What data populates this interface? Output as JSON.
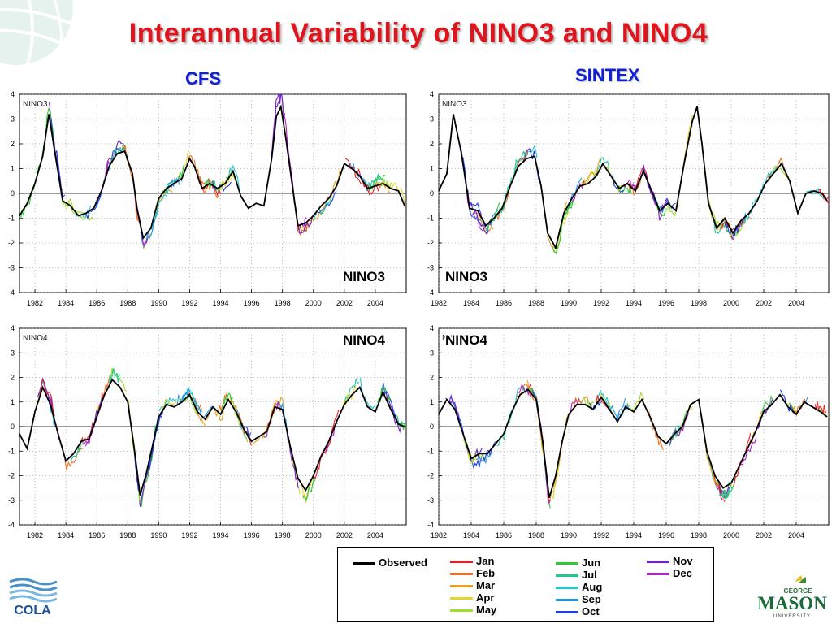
{
  "title": "Interannual Variability of NINO3 and NINO4",
  "columns": {
    "left": "CFS",
    "right": "SINTEX"
  },
  "logos": {
    "left": "COLA",
    "right_top": "GEORGE",
    "right_main": "MASON",
    "right_bottom": "UNIVERSITY"
  },
  "legend": [
    {
      "label": "Observed",
      "color": "#000000"
    },
    {
      "label": "Jan",
      "color": "#e8202a"
    },
    {
      "label": "Feb",
      "color": "#f07020"
    },
    {
      "label": "Mar",
      "color": "#e8a020"
    },
    {
      "label": "Apr",
      "color": "#e0d830"
    },
    {
      "label": "May",
      "color": "#a0dc30"
    },
    {
      "label": "Jun",
      "color": "#30c830"
    },
    {
      "label": "Jul",
      "color": "#20c890"
    },
    {
      "label": "Aug",
      "color": "#20c8d0"
    },
    {
      "label": "Sep",
      "color": "#2098e8"
    },
    {
      "label": "Oct",
      "color": "#2040e0"
    },
    {
      "label": "Nov",
      "color": "#7020c8"
    },
    {
      "label": "Dec",
      "color": "#b020c8"
    }
  ],
  "chart_data": [
    {
      "type": "line",
      "id": "cfs-nino3",
      "panel_label": "NINO3",
      "overlay_label": "NINO3",
      "ylim": [
        -4,
        4
      ],
      "yticks": [
        -4,
        -3,
        -2,
        -1,
        0,
        1,
        2,
        3,
        4
      ],
      "xlim": [
        1981,
        2006
      ],
      "xticks": [
        1982,
        1984,
        1986,
        1988,
        1990,
        1992,
        1994,
        1996,
        1998,
        2000,
        2002,
        2004
      ],
      "grid": true,
      "observed": {
        "x": [
          1981.0,
          1981.5,
          1982.0,
          1982.5,
          1982.9,
          1983.3,
          1983.8,
          1984.3,
          1984.8,
          1985.3,
          1985.8,
          1986.3,
          1986.8,
          1987.3,
          1987.8,
          1988.3,
          1988.6,
          1989.0,
          1989.5,
          1990.0,
          1990.5,
          1991.0,
          1991.5,
          1992.0,
          1992.3,
          1992.8,
          1993.3,
          1993.8,
          1994.3,
          1994.8,
          1995.3,
          1995.8,
          1996.3,
          1996.8,
          1997.3,
          1997.6,
          1997.9,
          1998.2,
          1998.6,
          1999.0,
          1999.5,
          2000.0,
          2000.5,
          2001.0,
          2001.5,
          2002.0,
          2002.5,
          2003.0,
          2003.5,
          2004.0,
          2004.5,
          2005.0,
          2005.5,
          2005.9
        ],
        "y": [
          -0.9,
          -0.4,
          0.4,
          1.5,
          3.2,
          1.6,
          -0.3,
          -0.5,
          -0.9,
          -0.8,
          -0.6,
          0.1,
          1.1,
          1.6,
          1.7,
          0.8,
          -0.6,
          -1.8,
          -1.4,
          -0.2,
          0.2,
          0.4,
          0.6,
          1.4,
          1.1,
          0.2,
          0.4,
          0.2,
          0.4,
          0.9,
          -0.1,
          -0.6,
          -0.4,
          -0.5,
          1.4,
          3.1,
          3.5,
          2.3,
          0.5,
          -1.3,
          -1.2,
          -0.9,
          -0.5,
          -0.2,
          0.3,
          1.2,
          1.0,
          0.7,
          0.2,
          0.3,
          0.4,
          0.2,
          0.1,
          -0.5
        ]
      }
    },
    {
      "type": "line",
      "id": "sintex-nino3",
      "panel_label": "NINO3",
      "overlay_label": "NINO3",
      "ylim": [
        -4,
        4
      ],
      "yticks": [
        -4,
        -3,
        -2,
        -1,
        0,
        1,
        2,
        3,
        4
      ],
      "xlim": [
        1982,
        2006
      ],
      "xticks": [
        1982,
        1984,
        1986,
        1988,
        1990,
        1992,
        1994,
        1996,
        1998,
        2000,
        2002,
        2004
      ],
      "grid": true,
      "observed": {
        "x": [
          1982.0,
          1982.5,
          1982.9,
          1983.4,
          1983.9,
          1984.4,
          1984.9,
          1985.4,
          1985.9,
          1986.4,
          1986.9,
          1987.4,
          1987.9,
          1988.3,
          1988.7,
          1989.2,
          1989.7,
          1990.2,
          1990.7,
          1991.2,
          1991.7,
          1992.1,
          1992.6,
          1993.1,
          1993.6,
          1994.1,
          1994.6,
          1995.1,
          1995.6,
          1996.1,
          1996.6,
          1997.1,
          1997.6,
          1997.9,
          1998.2,
          1998.6,
          1999.1,
          1999.6,
          2000.1,
          2000.6,
          2001.1,
          2001.6,
          2002.1,
          2002.6,
          2003.1,
          2003.6,
          2004.1,
          2004.6,
          2005.1,
          2005.6,
          2005.9
        ],
        "y": [
          0.1,
          0.8,
          3.2,
          1.6,
          -0.6,
          -0.7,
          -1.3,
          -1.0,
          -0.6,
          0.3,
          1.1,
          1.4,
          1.5,
          0.3,
          -1.6,
          -2.2,
          -0.8,
          -0.2,
          0.3,
          0.4,
          0.7,
          1.2,
          0.7,
          0.2,
          0.4,
          0.1,
          0.9,
          0.1,
          -0.7,
          -0.4,
          -0.7,
          1.2,
          2.9,
          3.5,
          2.0,
          -0.4,
          -1.4,
          -1.0,
          -1.6,
          -1.1,
          -0.8,
          -0.3,
          0.4,
          0.8,
          1.2,
          0.5,
          -0.8,
          0.0,
          0.1,
          0.0,
          -0.3
        ]
      }
    },
    {
      "type": "line",
      "id": "cfs-nino4",
      "panel_label": "NINO4",
      "overlay_label": "NINO4",
      "ylim": [
        -4,
        4
      ],
      "yticks": [
        -4,
        -3,
        -2,
        -1,
        0,
        1,
        2,
        3,
        4
      ],
      "xlim": [
        1981,
        2006
      ],
      "xticks": [
        1982,
        1984,
        1986,
        1988,
        1990,
        1992,
        1994,
        1996,
        1998,
        2000,
        2002,
        2004
      ],
      "grid": true,
      "observed": {
        "x": [
          1981.0,
          1981.5,
          1982.0,
          1982.5,
          1983.0,
          1983.5,
          1984.0,
          1984.5,
          1985.0,
          1985.5,
          1986.0,
          1986.5,
          1987.0,
          1987.5,
          1988.0,
          1988.4,
          1988.8,
          1989.2,
          1989.6,
          1990.0,
          1990.5,
          1991.0,
          1991.5,
          1992.0,
          1992.5,
          1993.0,
          1993.5,
          1994.0,
          1994.5,
          1995.0,
          1995.5,
          1996.0,
          1996.5,
          1997.0,
          1997.5,
          1998.0,
          1998.5,
          1999.0,
          1999.5,
          2000.0,
          2000.5,
          2001.0,
          2001.5,
          2002.0,
          2002.5,
          2003.0,
          2003.5,
          2004.0,
          2004.5,
          2005.0,
          2005.5,
          2005.9
        ],
        "y": [
          -0.3,
          -0.9,
          0.6,
          1.6,
          0.9,
          -0.3,
          -1.4,
          -1.1,
          -0.6,
          -0.5,
          0.4,
          1.3,
          1.9,
          1.6,
          1.0,
          -0.8,
          -2.8,
          -1.9,
          -0.8,
          0.4,
          0.9,
          0.8,
          1.0,
          1.3,
          0.6,
          0.3,
          0.8,
          0.5,
          1.1,
          0.6,
          -0.1,
          -0.6,
          -0.4,
          -0.2,
          0.8,
          0.7,
          -0.8,
          -2.1,
          -2.6,
          -2.0,
          -1.2,
          -0.6,
          0.2,
          0.9,
          1.3,
          1.6,
          0.8,
          0.6,
          1.4,
          0.7,
          0.1,
          0.0
        ]
      }
    },
    {
      "type": "line",
      "id": "sintex-nino4",
      "panel_label": "NINO4",
      "overlay_label": "NINO4",
      "ylim": [
        -4,
        4
      ],
      "yticks": [
        -4,
        -3,
        -2,
        -1,
        0,
        1,
        2,
        3,
        4
      ],
      "xlim": [
        1982,
        2006
      ],
      "xticks": [
        1982,
        1984,
        1986,
        1988,
        1990,
        1992,
        1994,
        1996,
        1998,
        2000,
        2002,
        2004
      ],
      "grid": true,
      "observed": {
        "x": [
          1982.0,
          1982.5,
          1983.0,
          1983.5,
          1984.0,
          1984.5,
          1985.0,
          1985.5,
          1986.0,
          1986.5,
          1987.0,
          1987.5,
          1988.0,
          1988.4,
          1988.8,
          1989.2,
          1989.6,
          1990.0,
          1990.5,
          1991.0,
          1991.5,
          1992.0,
          1992.5,
          1993.0,
          1993.5,
          1994.0,
          1994.5,
          1995.0,
          1995.5,
          1996.0,
          1996.5,
          1997.0,
          1997.5,
          1998.0,
          1998.5,
          1999.0,
          1999.5,
          2000.0,
          2000.5,
          2001.0,
          2001.5,
          2002.0,
          2002.5,
          2003.0,
          2003.5,
          2004.0,
          2004.5,
          2005.0,
          2005.5,
          2005.9
        ],
        "y": [
          0.5,
          1.1,
          0.7,
          -0.3,
          -1.3,
          -1.1,
          -1.1,
          -0.7,
          -0.3,
          0.6,
          1.3,
          1.5,
          1.1,
          -0.6,
          -2.9,
          -2.0,
          -0.6,
          0.5,
          0.9,
          0.9,
          0.7,
          1.2,
          0.7,
          0.2,
          0.8,
          0.6,
          1.1,
          0.4,
          -0.4,
          -0.7,
          -0.3,
          0.0,
          0.9,
          1.1,
          -1.0,
          -2.0,
          -2.5,
          -2.3,
          -1.6,
          -0.9,
          -0.2,
          0.6,
          0.9,
          1.3,
          0.8,
          0.5,
          1.0,
          0.8,
          0.6,
          0.4
        ]
      }
    }
  ]
}
